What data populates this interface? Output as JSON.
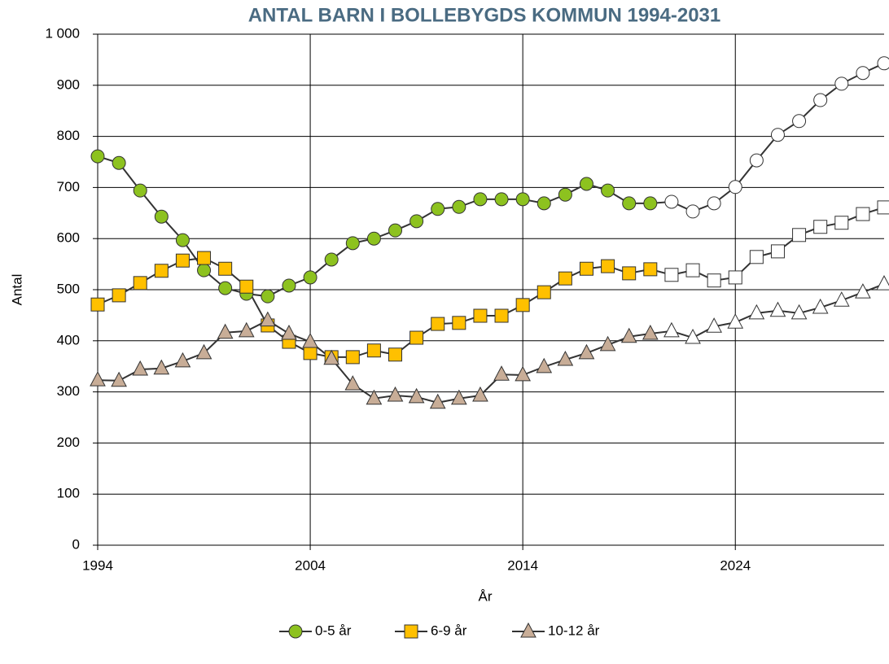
{
  "chart_data": {
    "type": "line",
    "title": "ANTAL BARN I BOLLEBYGDS KOMMUN 1994-2031",
    "x_label": "År",
    "y_label": "Antal",
    "x": [
      1994,
      1995,
      1996,
      1997,
      1998,
      1999,
      2000,
      2001,
      2002,
      2003,
      2004,
      2005,
      2006,
      2007,
      2008,
      2009,
      2010,
      2011,
      2012,
      2013,
      2014,
      2015,
      2016,
      2017,
      2018,
      2019,
      2020,
      2021,
      2022,
      2023,
      2024,
      2025,
      2026,
      2027,
      2028,
      2029,
      2030,
      2031
    ],
    "series": [
      {
        "name": "0-5 år",
        "color": "#8dc21f",
        "marker": "circle",
        "values": [
          761,
          748,
          694,
          643,
          597,
          538,
          503,
          492,
          487,
          508,
          524,
          559,
          591,
          600,
          616,
          634,
          658,
          662,
          677,
          677,
          677,
          669,
          686,
          707,
          694,
          669,
          669,
          672,
          653,
          669,
          701,
          753,
          803,
          830,
          871,
          903,
          924,
          943
        ]
      },
      {
        "name": "6-9 år",
        "color": "#ffc000",
        "marker": "square",
        "values": [
          471,
          489,
          513,
          537,
          557,
          562,
          541,
          506,
          430,
          398,
          376,
          368,
          368,
          381,
          373,
          406,
          433,
          435,
          449,
          449,
          470,
          495,
          522,
          541,
          546,
          532,
          540,
          529,
          538,
          518,
          524,
          564,
          575,
          607,
          623,
          631,
          648,
          661
        ]
      },
      {
        "name": "10-12 år",
        "color": "#c8ad97",
        "marker": "triangle",
        "values": [
          323,
          322,
          344,
          346,
          360,
          376,
          416,
          419,
          440,
          414,
          398,
          365,
          315,
          287,
          293,
          290,
          279,
          287,
          293,
          334,
          333,
          349,
          363,
          376,
          392,
          408,
          414,
          419,
          406,
          428,
          436,
          454,
          459,
          454,
          465,
          479,
          495,
          511
        ]
      }
    ],
    "forecast_from": 2021,
    "forecast_color": "#ffffff",
    "line_color": "#333333",
    "xlim": [
      1994,
      2031
    ],
    "xticks": [
      1994,
      2004,
      2014,
      2024
    ],
    "ylim": [
      0,
      1000
    ],
    "yticks": [
      0,
      100,
      200,
      300,
      400,
      500,
      600,
      700,
      800,
      900,
      {
        "value": 1000,
        "label": "1 000"
      }
    ],
    "grid": true,
    "legend": "bottom"
  }
}
